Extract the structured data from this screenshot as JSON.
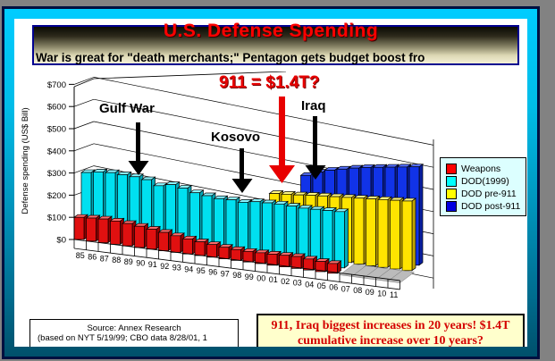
{
  "window": {
    "outer_background": "#828282",
    "frame_border_color": "#001040",
    "frame_gradient_top": "#00ccff",
    "frame_gradient_bottom": "#00506b"
  },
  "header": {
    "title": "U.S. Defense Spending",
    "title_color": "#ff0000",
    "subtitle": "War is great for \"death merchants;\" Pentagon gets budget boost fro"
  },
  "chart_data": {
    "type": "bar",
    "projection": "3d-perspective",
    "ylabel": "Defense spending (US$ Bill)",
    "xlabel": "",
    "ylim": [
      0,
      700
    ],
    "y_tick_step": 100,
    "y_ticks": [
      "$0",
      "$100",
      "$200",
      "$300",
      "$400",
      "$500",
      "$600",
      "$700"
    ],
    "grid": true,
    "legend_position": "right",
    "categories": [
      "85",
      "86",
      "87",
      "88",
      "89",
      "90",
      "91",
      "92",
      "93",
      "94",
      "95",
      "96",
      "97",
      "98",
      "99",
      "00",
      "01",
      "02",
      "03",
      "04",
      "05",
      "06",
      "07",
      "08",
      "09",
      "10",
      "11"
    ],
    "series": [
      {
        "name": "Weapons",
        "color": "#e01010",
        "top_color": "#ff6a6a",
        "side_color": "#980000",
        "values": [
          100,
          104,
          107,
          105,
          101,
          96,
          90,
          83,
          75,
          68,
          62,
          57,
          52,
          49,
          48,
          49,
          50,
          52,
          54,
          50,
          46,
          44,
          null,
          null,
          null,
          null,
          null
        ]
      },
      {
        "name": "DOD(1999)",
        "color": "#00e0f0",
        "top_color": "#8cf4ff",
        "side_color": "#00a8b8",
        "values": [
          278,
          288,
          292,
          290,
          288,
          282,
          262,
          274,
          266,
          252,
          246,
          240,
          242,
          238,
          248,
          250,
          252,
          250,
          248,
          250,
          252,
          254,
          null,
          null,
          null,
          null,
          null
        ]
      },
      {
        "name": "DOD pre-911",
        "color": "#ffe400",
        "top_color": "#fff780",
        "side_color": "#bfa300",
        "values": [
          null,
          null,
          null,
          null,
          null,
          null,
          null,
          null,
          null,
          null,
          null,
          null,
          null,
          null,
          null,
          268,
          272,
          276,
          282,
          286,
          290,
          294,
          298,
          302,
          306,
          310,
          314
        ]
      },
      {
        "name": "DOD post-911",
        "color": "#1133e8",
        "top_color": "#5570ff",
        "side_color": "#0a1fa0",
        "values": [
          null,
          null,
          null,
          null,
          null,
          null,
          null,
          null,
          null,
          null,
          null,
          null,
          null,
          null,
          null,
          null,
          null,
          340,
          362,
          378,
          390,
          402,
          412,
          420,
          428,
          436,
          444
        ]
      }
    ],
    "annotations": {
      "gulf_war": "Gulf War",
      "kosovo": "Kosovo",
      "nine_eleven": "911 = $1.4T?",
      "iraq": "Iraq"
    }
  },
  "legend": {
    "items": [
      {
        "label": "Weapons",
        "color": "#ff0000"
      },
      {
        "label": "DOD(1999)",
        "color": "#00ffff"
      },
      {
        "label": "DOD pre-911",
        "color": "#ffff00"
      },
      {
        "label": "DOD post-911",
        "color": "#0000e0"
      }
    ]
  },
  "source_box": {
    "line1": "Source: Annex Research",
    "line2": "(based on NYT 5/19/99; CBO data 8/28/01, 1"
  },
  "callout": {
    "line1": "911, Iraq biggest increases in 20 years! $1.4T",
    "line2": "cumulative increase over 10 years?",
    "text_color": "#d40000",
    "background": "#ffffcc"
  }
}
